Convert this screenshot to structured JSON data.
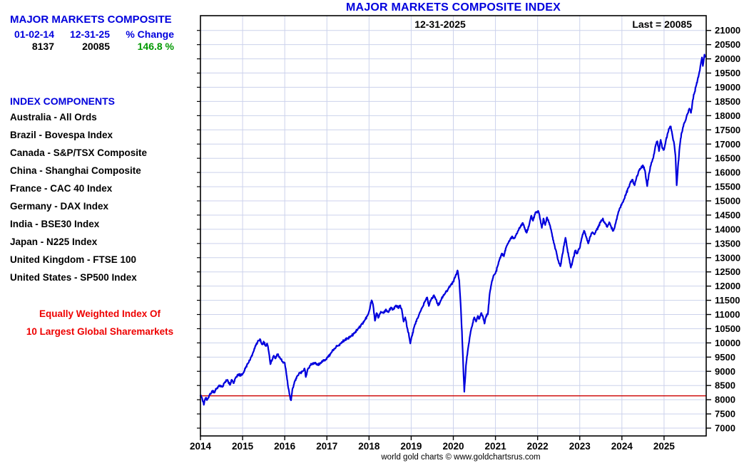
{
  "info_panel": {
    "title": "MAJOR MARKETS COMPOSITE",
    "header": {
      "start_date": "01-02-14",
      "end_date": "12-31-25",
      "change_label": "% Change",
      "start_value": "8137",
      "end_value": "20085",
      "change_value": "146.8 %"
    },
    "components_title": "INDEX COMPONENTS",
    "components": [
      "Australia - All Ords",
      "Brazil - Bovespa Index",
      "Canada - S&P/TSX Composite",
      "China - Shanghai Composite",
      "France - CAC 40 Index",
      "Germany - DAX Index",
      "India - BSE30 Index",
      "Japan - N225 Index",
      "United Kingdom - FTSE 100",
      "United States - SP500 Index"
    ],
    "note_line1": "Equally Weighted Index Of",
    "note_line2": "10 Largest Global Sharemarkets"
  },
  "chart": {
    "title": "MAJOR MARKETS COMPOSITE INDEX",
    "date_label": "12-31-2025",
    "last_label": "Last = 20085",
    "copyright": "world gold charts © www.goldchartsrus.com"
  },
  "chart_data": {
    "type": "line",
    "title": "MAJOR MARKETS COMPOSITE INDEX",
    "xlabel": "",
    "ylabel": "",
    "xlim": [
      2014,
      2026
    ],
    "ylim": [
      6725,
      21520
    ],
    "x_tick_years": [
      2014,
      2015,
      2016,
      2017,
      2018,
      2019,
      2020,
      2021,
      2022,
      2023,
      2024,
      2025
    ],
    "y_tick_min": 7000,
    "y_tick_max": 21000,
    "y_tick_step": 500,
    "grid": true,
    "legend_position": "none",
    "baseline_value": 8137,
    "last_value": 20085,
    "start_value": 8137,
    "percent_change": 146.8,
    "colors": {
      "line": "#0000dd",
      "grid": "#ccd2ec",
      "baseline": "#cc0000",
      "border": "#000000",
      "label": "#000000"
    },
    "series": [
      {
        "name": "Major Markets Composite Index",
        "points": [
          [
            2014.0,
            8137
          ],
          [
            2014.04,
            8050
          ],
          [
            2014.08,
            7820
          ],
          [
            2014.12,
            8060
          ],
          [
            2014.16,
            8000
          ],
          [
            2014.22,
            8180
          ],
          [
            2014.28,
            8300
          ],
          [
            2014.33,
            8250
          ],
          [
            2014.4,
            8420
          ],
          [
            2014.46,
            8500
          ],
          [
            2014.52,
            8450
          ],
          [
            2014.58,
            8620
          ],
          [
            2014.64,
            8700
          ],
          [
            2014.7,
            8520
          ],
          [
            2014.74,
            8700
          ],
          [
            2014.79,
            8580
          ],
          [
            2014.84,
            8800
          ],
          [
            2014.9,
            8900
          ],
          [
            2014.96,
            8850
          ],
          [
            2015.02,
            8950
          ],
          [
            2015.08,
            9150
          ],
          [
            2015.14,
            9300
          ],
          [
            2015.2,
            9500
          ],
          [
            2015.26,
            9700
          ],
          [
            2015.32,
            9950
          ],
          [
            2015.38,
            10080
          ],
          [
            2015.42,
            10120
          ],
          [
            2015.46,
            9950
          ],
          [
            2015.5,
            10050
          ],
          [
            2015.54,
            9900
          ],
          [
            2015.58,
            9980
          ],
          [
            2015.62,
            9700
          ],
          [
            2015.66,
            9250
          ],
          [
            2015.7,
            9400
          ],
          [
            2015.74,
            9550
          ],
          [
            2015.78,
            9450
          ],
          [
            2015.82,
            9600
          ],
          [
            2015.88,
            9500
          ],
          [
            2015.94,
            9350
          ],
          [
            2016.0,
            9300
          ],
          [
            2016.04,
            8900
          ],
          [
            2016.08,
            8450
          ],
          [
            2016.12,
            8150
          ],
          [
            2016.15,
            7980
          ],
          [
            2016.18,
            8350
          ],
          [
            2016.24,
            8650
          ],
          [
            2016.3,
            8850
          ],
          [
            2016.36,
            8950
          ],
          [
            2016.42,
            9000
          ],
          [
            2016.47,
            9100
          ],
          [
            2016.5,
            8800
          ],
          [
            2016.54,
            9050
          ],
          [
            2016.6,
            9200
          ],
          [
            2016.66,
            9280
          ],
          [
            2016.72,
            9300
          ],
          [
            2016.78,
            9220
          ],
          [
            2016.84,
            9280
          ],
          [
            2016.9,
            9350
          ],
          [
            2016.96,
            9400
          ],
          [
            2017.02,
            9500
          ],
          [
            2017.1,
            9650
          ],
          [
            2017.18,
            9800
          ],
          [
            2017.26,
            9900
          ],
          [
            2017.34,
            10000
          ],
          [
            2017.42,
            10100
          ],
          [
            2017.5,
            10150
          ],
          [
            2017.58,
            10250
          ],
          [
            2017.66,
            10350
          ],
          [
            2017.74,
            10500
          ],
          [
            2017.82,
            10650
          ],
          [
            2017.9,
            10800
          ],
          [
            2017.96,
            10950
          ],
          [
            2018.02,
            11200
          ],
          [
            2018.06,
            11500
          ],
          [
            2018.1,
            11300
          ],
          [
            2018.14,
            10780
          ],
          [
            2018.18,
            11050
          ],
          [
            2018.22,
            10880
          ],
          [
            2018.28,
            11100
          ],
          [
            2018.34,
            11050
          ],
          [
            2018.4,
            11180
          ],
          [
            2018.46,
            11080
          ],
          [
            2018.52,
            11250
          ],
          [
            2018.58,
            11180
          ],
          [
            2018.64,
            11320
          ],
          [
            2018.7,
            11220
          ],
          [
            2018.74,
            11320
          ],
          [
            2018.78,
            11150
          ],
          [
            2018.82,
            10750
          ],
          [
            2018.86,
            10900
          ],
          [
            2018.9,
            10550
          ],
          [
            2018.94,
            10350
          ],
          [
            2018.98,
            9980
          ],
          [
            2019.02,
            10250
          ],
          [
            2019.08,
            10600
          ],
          [
            2019.14,
            10850
          ],
          [
            2019.2,
            11050
          ],
          [
            2019.26,
            11250
          ],
          [
            2019.32,
            11450
          ],
          [
            2019.38,
            11600
          ],
          [
            2019.42,
            11300
          ],
          [
            2019.48,
            11550
          ],
          [
            2019.54,
            11680
          ],
          [
            2019.6,
            11500
          ],
          [
            2019.64,
            11320
          ],
          [
            2019.7,
            11480
          ],
          [
            2019.76,
            11650
          ],
          [
            2019.82,
            11800
          ],
          [
            2019.88,
            11900
          ],
          [
            2019.94,
            12050
          ],
          [
            2020.0,
            12150
          ],
          [
            2020.05,
            12350
          ],
          [
            2020.1,
            12550
          ],
          [
            2020.14,
            12200
          ],
          [
            2020.18,
            11200
          ],
          [
            2020.22,
            9800
          ],
          [
            2020.26,
            8280
          ],
          [
            2020.3,
            9200
          ],
          [
            2020.34,
            9700
          ],
          [
            2020.38,
            10100
          ],
          [
            2020.42,
            10450
          ],
          [
            2020.46,
            10700
          ],
          [
            2020.5,
            10900
          ],
          [
            2020.54,
            10750
          ],
          [
            2020.58,
            10950
          ],
          [
            2020.62,
            10850
          ],
          [
            2020.66,
            11050
          ],
          [
            2020.7,
            10950
          ],
          [
            2020.74,
            10680
          ],
          [
            2020.78,
            10950
          ],
          [
            2020.82,
            11000
          ],
          [
            2020.86,
            11700
          ],
          [
            2020.9,
            12050
          ],
          [
            2020.95,
            12350
          ],
          [
            2021.0,
            12450
          ],
          [
            2021.05,
            12700
          ],
          [
            2021.1,
            12950
          ],
          [
            2021.15,
            13150
          ],
          [
            2021.2,
            13050
          ],
          [
            2021.25,
            13350
          ],
          [
            2021.3,
            13500
          ],
          [
            2021.35,
            13650
          ],
          [
            2021.4,
            13750
          ],
          [
            2021.45,
            13680
          ],
          [
            2021.5,
            13850
          ],
          [
            2021.55,
            13980
          ],
          [
            2021.6,
            14120
          ],
          [
            2021.65,
            14220
          ],
          [
            2021.7,
            14000
          ],
          [
            2021.74,
            13880
          ],
          [
            2021.8,
            14150
          ],
          [
            2021.85,
            14480
          ],
          [
            2021.89,
            14300
          ],
          [
            2021.93,
            14520
          ],
          [
            2021.97,
            14600
          ],
          [
            2022.02,
            14630
          ],
          [
            2022.06,
            14350
          ],
          [
            2022.1,
            14050
          ],
          [
            2022.14,
            14380
          ],
          [
            2022.18,
            14150
          ],
          [
            2022.22,
            14420
          ],
          [
            2022.26,
            14280
          ],
          [
            2022.3,
            14100
          ],
          [
            2022.35,
            13750
          ],
          [
            2022.4,
            13450
          ],
          [
            2022.45,
            13150
          ],
          [
            2022.5,
            12850
          ],
          [
            2022.54,
            12700
          ],
          [
            2022.58,
            13050
          ],
          [
            2022.62,
            13400
          ],
          [
            2022.66,
            13700
          ],
          [
            2022.7,
            13350
          ],
          [
            2022.75,
            12950
          ],
          [
            2022.79,
            12650
          ],
          [
            2022.84,
            12950
          ],
          [
            2022.89,
            13250
          ],
          [
            2022.94,
            13150
          ],
          [
            2023.0,
            13350
          ],
          [
            2023.05,
            13700
          ],
          [
            2023.1,
            13950
          ],
          [
            2023.15,
            13750
          ],
          [
            2023.2,
            13500
          ],
          [
            2023.25,
            13750
          ],
          [
            2023.3,
            13900
          ],
          [
            2023.35,
            13820
          ],
          [
            2023.4,
            13980
          ],
          [
            2023.45,
            14120
          ],
          [
            2023.5,
            14280
          ],
          [
            2023.55,
            14380
          ],
          [
            2023.6,
            14200
          ],
          [
            2023.65,
            14080
          ],
          [
            2023.7,
            14250
          ],
          [
            2023.75,
            14050
          ],
          [
            2023.8,
            13950
          ],
          [
            2023.85,
            14200
          ],
          [
            2023.9,
            14500
          ],
          [
            2023.95,
            14750
          ],
          [
            2024.0,
            14900
          ],
          [
            2024.05,
            15050
          ],
          [
            2024.1,
            15250
          ],
          [
            2024.15,
            15450
          ],
          [
            2024.2,
            15650
          ],
          [
            2024.25,
            15750
          ],
          [
            2024.3,
            15550
          ],
          [
            2024.35,
            15850
          ],
          [
            2024.4,
            16050
          ],
          [
            2024.45,
            16150
          ],
          [
            2024.5,
            16250
          ],
          [
            2024.55,
            16050
          ],
          [
            2024.6,
            15520
          ],
          [
            2024.64,
            15950
          ],
          [
            2024.7,
            16350
          ],
          [
            2024.75,
            16550
          ],
          [
            2024.8,
            16950
          ],
          [
            2024.84,
            17100
          ],
          [
            2024.88,
            16750
          ],
          [
            2024.92,
            17150
          ],
          [
            2024.96,
            16850
          ],
          [
            2025.0,
            16800
          ],
          [
            2025.04,
            17100
          ],
          [
            2025.08,
            17350
          ],
          [
            2025.12,
            17550
          ],
          [
            2025.16,
            17620
          ],
          [
            2025.2,
            17300
          ],
          [
            2025.24,
            17000
          ],
          [
            2025.27,
            16600
          ],
          [
            2025.3,
            15550
          ],
          [
            2025.33,
            16200
          ],
          [
            2025.37,
            16900
          ],
          [
            2025.41,
            17350
          ],
          [
            2025.45,
            17600
          ],
          [
            2025.5,
            17800
          ],
          [
            2025.55,
            18050
          ],
          [
            2025.6,
            18250
          ],
          [
            2025.64,
            18100
          ],
          [
            2025.68,
            18550
          ],
          [
            2025.72,
            18800
          ],
          [
            2025.76,
            19050
          ],
          [
            2025.8,
            19300
          ],
          [
            2025.84,
            19550
          ],
          [
            2025.87,
            19800
          ],
          [
            2025.9,
            20050
          ],
          [
            2025.92,
            19750
          ],
          [
            2025.94,
            19950
          ],
          [
            2025.96,
            20150
          ],
          [
            2025.98,
            20085
          ]
        ]
      }
    ]
  }
}
